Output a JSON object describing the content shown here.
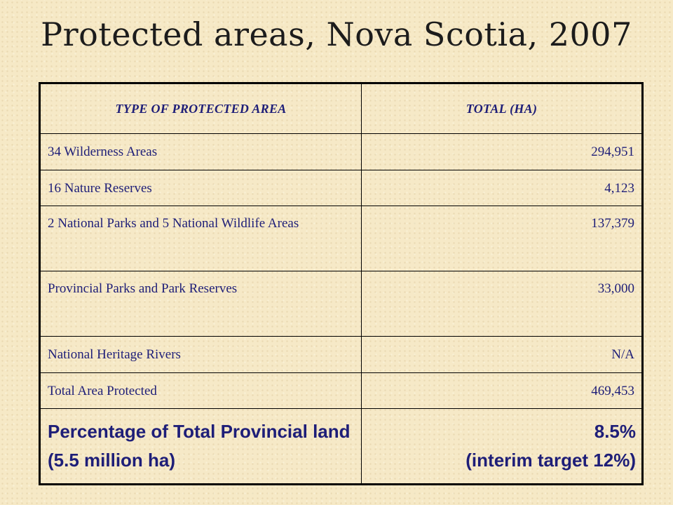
{
  "title": "Protected areas, Nova Scotia, 2007",
  "table": {
    "headers": {
      "type": "TYPE OF PROTECTED AREA",
      "total": "TOTAL (HA)"
    },
    "rows": [
      {
        "type": "34 Wilderness Areas",
        "total": "294,951"
      },
      {
        "type": "16 Nature Reserves",
        "total": "4,123"
      },
      {
        "type": "2 National Parks and 5 National Wildlife Areas",
        "total": "137,379"
      },
      {
        "type": "Provincial Parks and Park Reserves",
        "total": "33,000"
      },
      {
        "type": "National Heritage Rivers",
        "total": "N/A"
      },
      {
        "type": "Total Area Protected",
        "total": "469,453"
      }
    ],
    "summary": {
      "label": "Percentage of Total Provincial land (5.5 million   ha)",
      "value": "8.5%",
      "note": "(interim target 12%)"
    }
  },
  "colors": {
    "background": "#f6e9c6",
    "table_text": "#1e1e78",
    "title_text": "#1c1c1c",
    "border": "#000000"
  }
}
